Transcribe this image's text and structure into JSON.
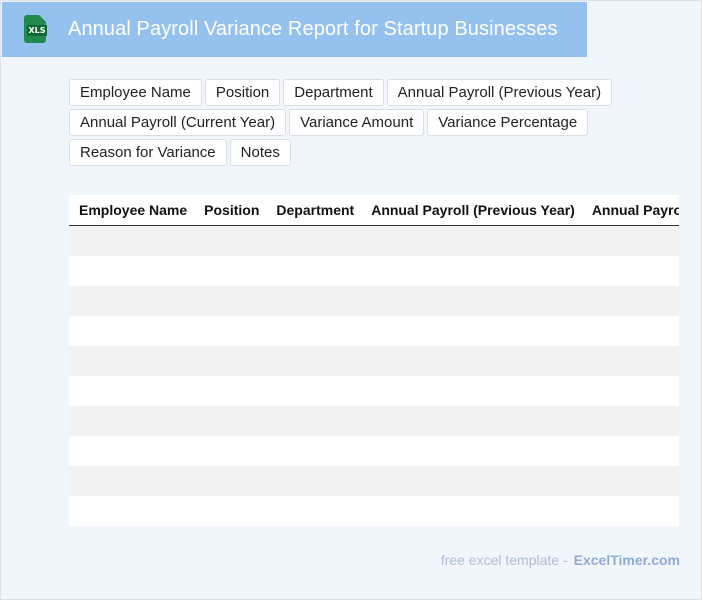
{
  "header": {
    "title": "Annual Payroll Variance Report for Startup Businesses",
    "icon_label": "XLS",
    "icon": "excel-file-icon",
    "background_color": "#94c1ee"
  },
  "field_chips": [
    [
      "Employee Name",
      "Position",
      "Department",
      "Annual Payroll (Previous Year)"
    ],
    [
      "Annual Payroll (Current Year)",
      "Variance Amount",
      "Variance Percentage"
    ],
    [
      "Reason for Variance",
      "Notes"
    ]
  ],
  "table": {
    "columns": [
      "Employee Name",
      "Position",
      "Department",
      "Annual Payroll (Previous Year)",
      "Annual Payroll (Current Year)",
      "Variance Amount",
      "Variance Percentage",
      "Reason for Variance",
      "Notes"
    ],
    "row_count": 10
  },
  "footer": {
    "text": "free excel template -",
    "brand": "ExcelTimer.com"
  }
}
